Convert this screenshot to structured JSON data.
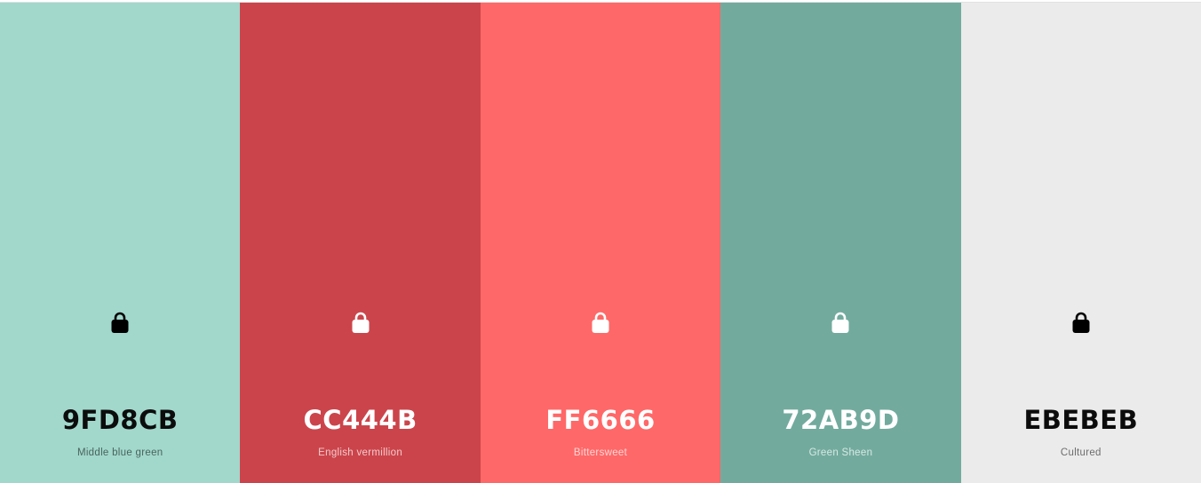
{
  "palette": {
    "swatches": [
      {
        "hex": "9FD8CB",
        "name": "Middle blue green",
        "color": "#A1D8CB",
        "text_theme": "dark",
        "icon": "lock-icon"
      },
      {
        "hex": "CC444B",
        "name": "English vermillion",
        "color": "#CC444B",
        "text_theme": "light",
        "icon": "lock-icon"
      },
      {
        "hex": "FF6666",
        "name": "Bittersweet",
        "color": "#FF6868",
        "text_theme": "light",
        "icon": "lock-icon"
      },
      {
        "hex": "72AB9D",
        "name": "Green Sheen",
        "color": "#72AB9E",
        "text_theme": "light",
        "icon": "lock-icon"
      },
      {
        "hex": "EBEBEB",
        "name": "Cultured",
        "color": "#EBEBEB",
        "text_theme": "dark",
        "icon": "lock-icon"
      }
    ]
  }
}
